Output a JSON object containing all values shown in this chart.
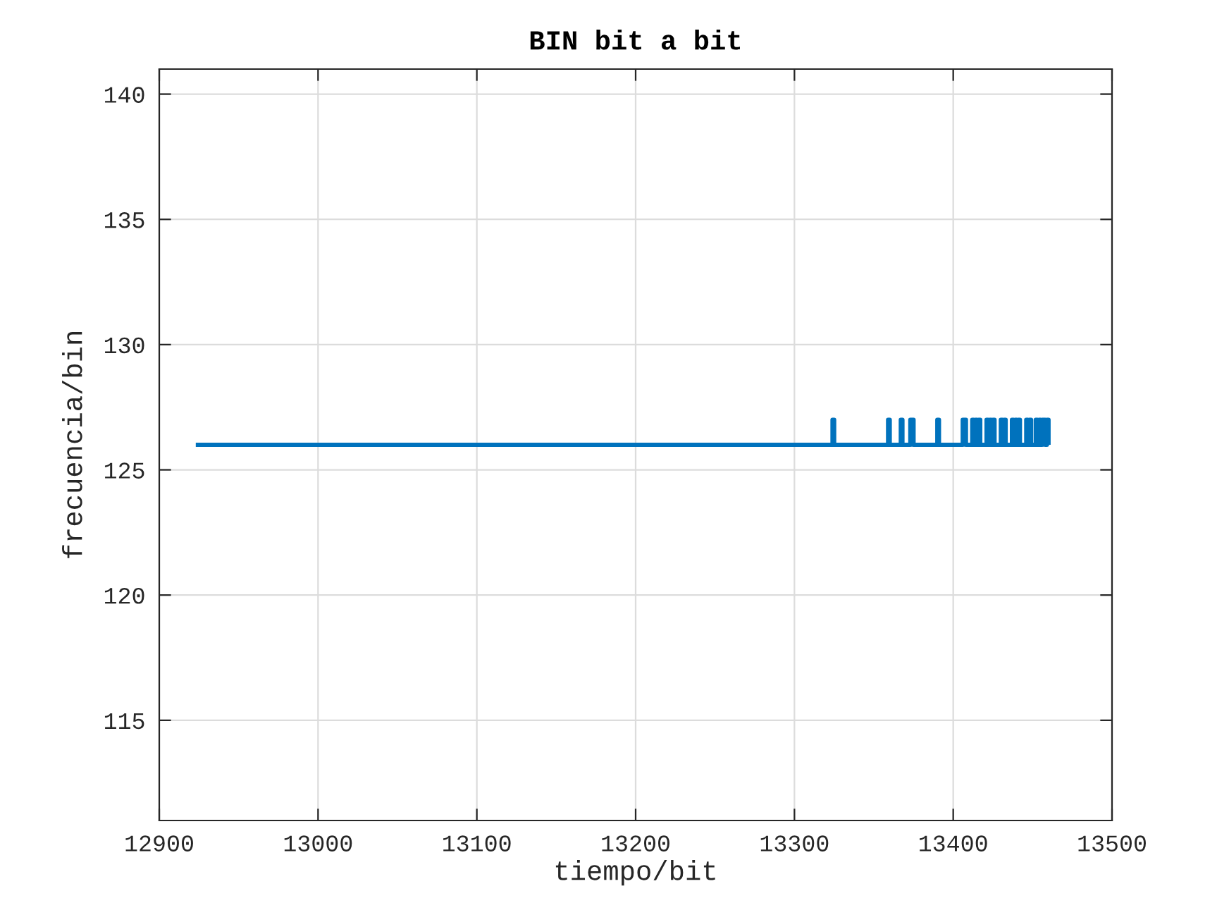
{
  "chart_data": {
    "type": "step",
    "title": "BIN bit a bit",
    "xlabel": "tiempo/bit",
    "ylabel": "frecuencia/bin",
    "x": [
      12923,
      13324,
      13325,
      13359,
      13360,
      13367,
      13368,
      13373,
      13375,
      13390,
      13391,
      13406,
      13408,
      13412,
      13413,
      13414,
      13415,
      13416,
      13417,
      13421,
      13422,
      13423,
      13424,
      13425,
      13426,
      13430,
      13431,
      13432,
      13433,
      13437,
      13438,
      13439,
      13440,
      13441,
      13442,
      13446,
      13447,
      13448,
      13449,
      13452,
      13453,
      13454,
      13455,
      13456,
      13458,
      13459,
      13460
    ],
    "series": [
      {
        "color": "#0072bd",
        "values": [
          126,
          127,
          126,
          127,
          126,
          127,
          126,
          127,
          126,
          127,
          126,
          127,
          126,
          127,
          126,
          127,
          126,
          127,
          126,
          127,
          126,
          127,
          126,
          127,
          126,
          127,
          126,
          127,
          126,
          127,
          126,
          127,
          126,
          127,
          126,
          127,
          126,
          127,
          126,
          127,
          126,
          127,
          126,
          127,
          126,
          127,
          126
        ]
      }
    ],
    "xlim": [
      12900,
      13500
    ],
    "ylim": [
      111,
      141
    ],
    "xticks": [
      12900,
      13000,
      13100,
      13200,
      13300,
      13400,
      13500
    ],
    "yticks": [
      115,
      120,
      125,
      130,
      135,
      140
    ],
    "grid": true
  }
}
